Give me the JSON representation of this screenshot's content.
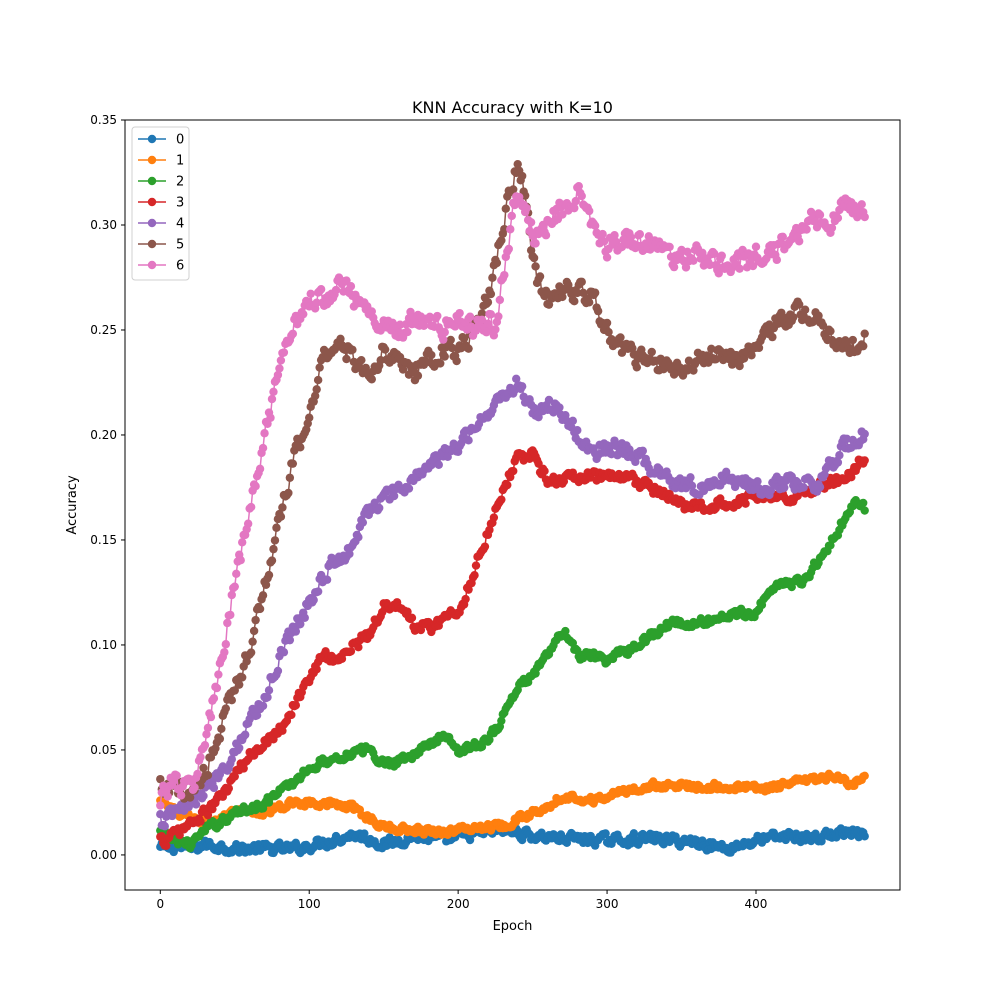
{
  "chart_data": {
    "type": "line",
    "title": "KNN Accuracy with K=10",
    "xlabel": "Epoch",
    "ylabel": "Accuracy",
    "xlim": [
      -23.7,
      496.7
    ],
    "ylim": [
      -0.0167,
      0.35
    ],
    "x_ticks": [
      0,
      100,
      200,
      300,
      400
    ],
    "y_ticks": [
      0.0,
      0.05,
      0.1,
      0.15,
      0.2,
      0.25,
      0.3,
      0.35
    ],
    "y_tick_labels": [
      "0.00",
      "0.05",
      "0.10",
      "0.15",
      "0.20",
      "0.25",
      "0.30",
      "0.35"
    ],
    "grid": false,
    "legend_position": "upper left",
    "marker": "circle",
    "x_start": 0,
    "x_end": 473,
    "series": [
      {
        "name": "0",
        "color": "#1f77b4",
        "x": [
          0,
          10,
          20,
          30,
          50,
          70,
          90,
          110,
          130,
          150,
          170,
          190,
          210,
          230,
          250,
          270,
          300,
          330,
          360,
          380,
          400,
          420,
          440,
          460,
          473
        ],
        "y": [
          0.003,
          0.004,
          0.003,
          0.005,
          0.003,
          0.003,
          0.003,
          0.006,
          0.01,
          0.005,
          0.009,
          0.007,
          0.01,
          0.012,
          0.009,
          0.008,
          0.007,
          0.008,
          0.006,
          0.003,
          0.007,
          0.009,
          0.008,
          0.011,
          0.009
        ]
      },
      {
        "name": "1",
        "color": "#ff7f0e",
        "x": [
          0,
          10,
          20,
          30,
          50,
          70,
          90,
          110,
          130,
          150,
          170,
          190,
          210,
          230,
          250,
          270,
          290,
          310,
          330,
          360,
          390,
          410,
          430,
          450,
          465,
          473
        ],
        "y": [
          0.025,
          0.02,
          0.018,
          0.015,
          0.02,
          0.02,
          0.025,
          0.025,
          0.022,
          0.013,
          0.012,
          0.011,
          0.013,
          0.014,
          0.02,
          0.028,
          0.026,
          0.03,
          0.033,
          0.033,
          0.032,
          0.032,
          0.035,
          0.037,
          0.034,
          0.037
        ]
      },
      {
        "name": "2",
        "color": "#2ca02c",
        "x": [
          0,
          10,
          20,
          30,
          50,
          70,
          90,
          100,
          120,
          140,
          150,
          170,
          190,
          200,
          215,
          225,
          240,
          255,
          270,
          280,
          300,
          320,
          340,
          360,
          380,
          400,
          410,
          430,
          445,
          455,
          465,
          473
        ],
        "y": [
          0.01,
          0.007,
          0.005,
          0.012,
          0.02,
          0.025,
          0.035,
          0.042,
          0.047,
          0.05,
          0.043,
          0.048,
          0.057,
          0.05,
          0.053,
          0.06,
          0.08,
          0.09,
          0.107,
          0.095,
          0.093,
          0.1,
          0.11,
          0.11,
          0.114,
          0.116,
          0.128,
          0.13,
          0.143,
          0.155,
          0.167,
          0.165
        ]
      },
      {
        "name": "3",
        "color": "#d62728",
        "x": [
          0,
          10,
          20,
          30,
          40,
          50,
          60,
          70,
          80,
          90,
          100,
          110,
          120,
          130,
          140,
          150,
          160,
          170,
          180,
          190,
          200,
          210,
          220,
          230,
          240,
          250,
          260,
          280,
          300,
          320,
          340,
          360,
          380,
          400,
          420,
          440,
          460,
          473
        ],
        "y": [
          0.006,
          0.01,
          0.015,
          0.02,
          0.027,
          0.038,
          0.047,
          0.055,
          0.06,
          0.072,
          0.085,
          0.095,
          0.093,
          0.1,
          0.105,
          0.12,
          0.118,
          0.11,
          0.108,
          0.113,
          0.115,
          0.135,
          0.155,
          0.175,
          0.19,
          0.19,
          0.178,
          0.18,
          0.18,
          0.178,
          0.17,
          0.165,
          0.168,
          0.172,
          0.17,
          0.175,
          0.18,
          0.19
        ]
      },
      {
        "name": "4",
        "color": "#9467bd",
        "x": [
          0,
          10,
          20,
          30,
          40,
          50,
          60,
          70,
          80,
          90,
          100,
          110,
          120,
          130,
          140,
          150,
          160,
          170,
          180,
          190,
          200,
          210,
          220,
          230,
          240,
          250,
          260,
          270,
          280,
          290,
          300,
          320,
          340,
          360,
          380,
          400,
          420,
          440,
          460,
          473
        ],
        "y": [
          0.015,
          0.02,
          0.025,
          0.03,
          0.04,
          0.05,
          0.065,
          0.075,
          0.095,
          0.11,
          0.12,
          0.135,
          0.14,
          0.15,
          0.165,
          0.17,
          0.172,
          0.18,
          0.185,
          0.19,
          0.195,
          0.205,
          0.21,
          0.22,
          0.225,
          0.21,
          0.215,
          0.21,
          0.2,
          0.19,
          0.195,
          0.19,
          0.18,
          0.175,
          0.18,
          0.175,
          0.177,
          0.175,
          0.195,
          0.2
        ]
      },
      {
        "name": "5",
        "color": "#8c564b",
        "x": [
          0,
          10,
          20,
          30,
          40,
          50,
          60,
          70,
          80,
          90,
          100,
          110,
          120,
          130,
          140,
          150,
          160,
          170,
          180,
          190,
          200,
          210,
          220,
          230,
          235,
          240,
          245,
          250,
          255,
          260,
          270,
          280,
          290,
          300,
          310,
          330,
          350,
          370,
          390,
          410,
          430,
          440,
          450,
          460,
          473
        ],
        "y": [
          0.03,
          0.03,
          0.03,
          0.04,
          0.06,
          0.08,
          0.1,
          0.13,
          0.16,
          0.19,
          0.21,
          0.24,
          0.245,
          0.235,
          0.23,
          0.24,
          0.235,
          0.23,
          0.235,
          0.24,
          0.24,
          0.25,
          0.265,
          0.3,
          0.32,
          0.33,
          0.31,
          0.28,
          0.27,
          0.265,
          0.27,
          0.268,
          0.265,
          0.25,
          0.24,
          0.235,
          0.23,
          0.24,
          0.235,
          0.25,
          0.26,
          0.255,
          0.25,
          0.24,
          0.245
        ]
      },
      {
        "name": "6",
        "color": "#e377c2",
        "x": [
          0,
          10,
          20,
          30,
          40,
          50,
          60,
          70,
          80,
          90,
          100,
          110,
          120,
          130,
          140,
          150,
          160,
          170,
          180,
          190,
          200,
          210,
          220,
          225,
          230,
          235,
          240,
          250,
          260,
          270,
          280,
          290,
          300,
          320,
          340,
          360,
          380,
          400,
          420,
          440,
          450,
          460,
          473
        ],
        "y": [
          0.03,
          0.035,
          0.03,
          0.055,
          0.09,
          0.13,
          0.165,
          0.2,
          0.23,
          0.255,
          0.265,
          0.265,
          0.275,
          0.265,
          0.255,
          0.255,
          0.25,
          0.255,
          0.255,
          0.25,
          0.255,
          0.25,
          0.255,
          0.25,
          0.28,
          0.3,
          0.32,
          0.295,
          0.3,
          0.31,
          0.315,
          0.3,
          0.29,
          0.295,
          0.285,
          0.285,
          0.28,
          0.285,
          0.29,
          0.305,
          0.3,
          0.31,
          0.305
        ]
      }
    ]
  }
}
